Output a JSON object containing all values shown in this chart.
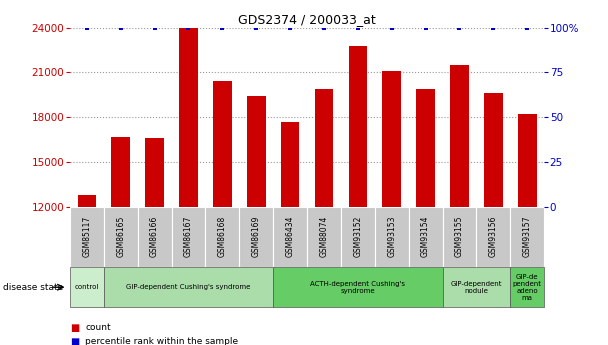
{
  "title": "GDS2374 / 200033_at",
  "samples": [
    "GSM85117",
    "GSM86165",
    "GSM86166",
    "GSM86167",
    "GSM86168",
    "GSM86169",
    "GSM86434",
    "GSM88074",
    "GSM93152",
    "GSM93153",
    "GSM93154",
    "GSM93155",
    "GSM93156",
    "GSM93157"
  ],
  "counts": [
    12800,
    16700,
    16600,
    24000,
    20400,
    19400,
    17700,
    19900,
    22800,
    21100,
    19900,
    21500,
    19600,
    18200
  ],
  "percentiles": [
    100,
    100,
    100,
    100,
    100,
    100,
    100,
    100,
    100,
    100,
    100,
    100,
    100,
    100
  ],
  "bar_color": "#cc0000",
  "percentile_color": "#0000cc",
  "ylim_left": [
    12000,
    24000
  ],
  "ylim_right": [
    0,
    100
  ],
  "yticks_left": [
    12000,
    15000,
    18000,
    21000,
    24000
  ],
  "yticks_right": [
    0,
    25,
    50,
    75,
    100
  ],
  "ytick_labels_right": [
    "0",
    "25",
    "50",
    "75",
    "100%"
  ],
  "grid_values": [
    15000,
    18000,
    21000,
    24000
  ],
  "disease_groups": [
    {
      "label": "control",
      "start": 0,
      "end": 1,
      "color": "#cceecc"
    },
    {
      "label": "GIP-dependent Cushing's syndrome",
      "start": 1,
      "end": 6,
      "color": "#aaddaa"
    },
    {
      "label": "ACTH-dependent Cushing's\nsyndrome",
      "start": 6,
      "end": 11,
      "color": "#66cc66"
    },
    {
      "label": "GIP-dependent\nnodule",
      "start": 11,
      "end": 13,
      "color": "#aaddaa"
    },
    {
      "label": "GIP-de\npendent\nadeno\nma",
      "start": 13,
      "end": 14,
      "color": "#66cc66"
    }
  ],
  "disease_state_label": "disease state",
  "legend_count_label": "count",
  "legend_percentile_label": "percentile rank within the sample",
  "bar_width": 0.55,
  "label_box_color": "#c8c8c8",
  "tick_label_color_left": "#cc0000",
  "tick_label_color_right": "#0000cc"
}
